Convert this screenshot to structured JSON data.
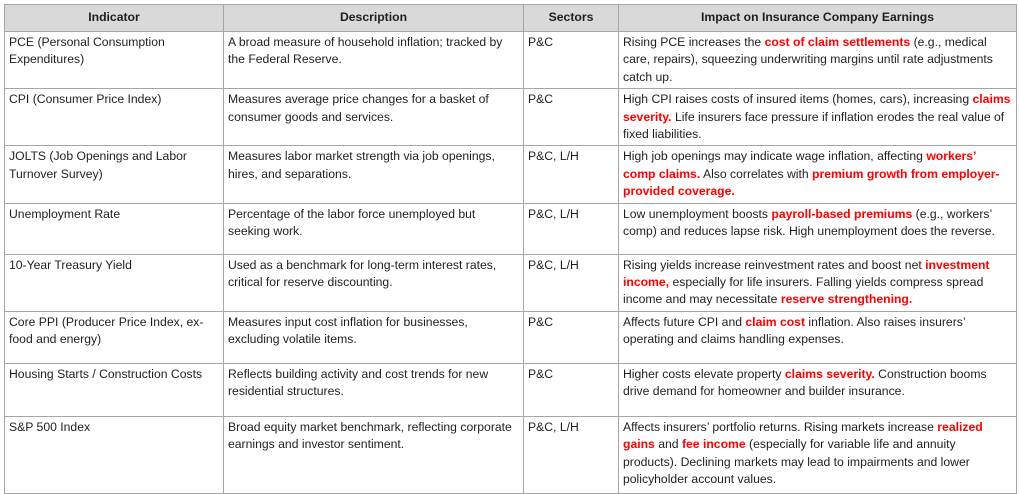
{
  "colors": {
    "highlight_red": "#ff0000",
    "header_background": "#d9d9d9",
    "border_gray": "#a6a6a6"
  },
  "table": {
    "headers": [
      "Indicator",
      "Description",
      "Sectors",
      "Impact on Insurance Company Earnings"
    ],
    "rows": [
      {
        "indicator": "PCE (Personal Consumption Expenditures)",
        "description": "A broad measure of household inflation; tracked by the Federal Reserve.",
        "sectors": "P&C",
        "impact": [
          {
            "text": "Rising PCE increases the "
          },
          {
            "text": "cost of claim settlements",
            "red": true
          },
          {
            "text": " (e.g., medical care, repairs), squeezing underwriting margins until rate adjustments catch up."
          }
        ]
      },
      {
        "indicator": "CPI (Consumer Price Index)",
        "description": "Measures average price changes for a basket of consumer goods and services.",
        "sectors": "P&C",
        "impact": [
          {
            "text": "High CPI raises costs of insured items (homes, cars), increasing "
          },
          {
            "text": "claims severity.",
            "red": true
          },
          {
            "text": " Life insurers face pressure if inflation erodes the real value of fixed liabilities."
          }
        ]
      },
      {
        "indicator": "JOLTS (Job Openings and Labor Turnover Survey)",
        "description": "Measures labor market strength via job openings, hires, and separations.",
        "sectors": "P&C, L/H",
        "impact": [
          {
            "text": "High job openings may indicate wage inflation, affecting "
          },
          {
            "text": "workers’ comp claims.",
            "red": true
          },
          {
            "text": " Also correlates with "
          },
          {
            "text": "premium growth from employer-provided coverage.",
            "red": true
          }
        ]
      },
      {
        "indicator": "Unemployment Rate",
        "description": "Percentage of the labor force unemployed but seeking work.",
        "sectors": "P&C, L/H",
        "impact": [
          {
            "text": "Low unemployment boosts "
          },
          {
            "text": "payroll-based premiums",
            "red": true
          },
          {
            "text": " (e.g., workers’ comp) and reduces lapse risk. High unemployment does the reverse."
          }
        ]
      },
      {
        "indicator": "10-Year Treasury Yield",
        "description": "Used as a benchmark for long-term interest rates, critical for reserve discounting.",
        "sectors": "P&C, L/H",
        "impact": [
          {
            "text": "Rising yields increase reinvestment rates and boost net "
          },
          {
            "text": "investment income,",
            "red": true
          },
          {
            "text": " especially for life insurers. Falling yields compress spread income and may necessitate "
          },
          {
            "text": "reserve strengthening.",
            "red": true
          }
        ]
      },
      {
        "indicator": "Core PPI (Producer Price Index, ex-food and energy)",
        "description": "Measures input cost inflation for businesses, excluding volatile items.",
        "sectors": "P&C",
        "impact": [
          {
            "text": "Affects future CPI and "
          },
          {
            "text": "claim cost",
            "red": true
          },
          {
            "text": " inflation. Also raises insurers’ operating and claims handling expenses."
          }
        ]
      },
      {
        "indicator": "Housing Starts / Construction Costs",
        "description": "Reflects building activity and cost trends for new residential structures.",
        "sectors": "P&C",
        "impact": [
          {
            "text": "Higher costs elevate property "
          },
          {
            "text": "claims severity.",
            "red": true
          },
          {
            "text": " Construction booms drive demand for homeowner and builder insurance."
          }
        ]
      },
      {
        "indicator": "S&P 500 Index",
        "description": "Broad equity market benchmark, reflecting corporate earnings and investor sentiment.",
        "sectors": "P&C, L/H",
        "impact": [
          {
            "text": "Affects insurers’ portfolio returns. Rising markets increase "
          },
          {
            "text": "realized gains",
            "red": true
          },
          {
            "text": " and "
          },
          {
            "text": "fee income",
            "red": true
          },
          {
            "text": " (especially for variable life and annuity products). Declining markets may lead to impairments and lower policyholder account values."
          }
        ]
      }
    ]
  }
}
